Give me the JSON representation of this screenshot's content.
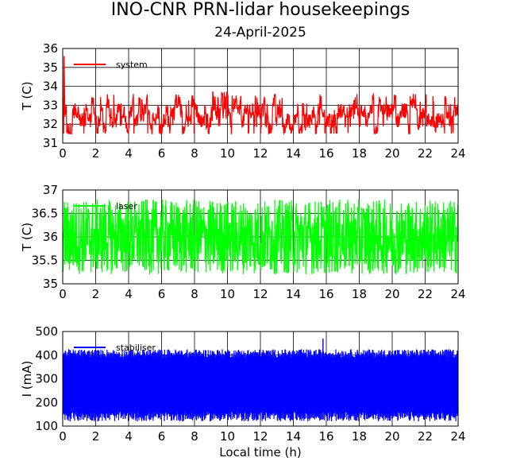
{
  "title": "INO-CNR PRN-lidar housekeepings",
  "subtitle": "24-April-2025",
  "colors": {
    "system": "#ff0000",
    "laser": "#00ff00",
    "stabiliser": "#0000ff"
  },
  "chart_data": [
    {
      "type": "line",
      "ylabel": "T (C)",
      "xlabel": "",
      "xlim": [
        0,
        24
      ],
      "ylim": [
        31,
        36
      ],
      "xticks": [
        "0",
        "2",
        "4",
        "6",
        "8",
        "10",
        "12",
        "14",
        "16",
        "18",
        "20",
        "22",
        "24"
      ],
      "yticks": [
        "31",
        "32",
        "33",
        "34",
        "35",
        "36"
      ],
      "grid": true,
      "legend_position": "top-left",
      "series": [
        {
          "name": "system",
          "color": "#ff0000",
          "description": "dense noisy trace mostly between 31.5 and 33.2 C, spikes to 35.6 C near 0 h",
          "typical_range": [
            31.5,
            33.2
          ],
          "max": 35.6
        }
      ]
    },
    {
      "type": "line",
      "ylabel": "T (C)",
      "xlabel": "",
      "xlim": [
        0,
        24
      ],
      "ylim": [
        35,
        37
      ],
      "xticks": [
        "0",
        "2",
        "4",
        "6",
        "8",
        "10",
        "12",
        "14",
        "16",
        "18",
        "20",
        "22",
        "24"
      ],
      "yticks": [
        "35",
        "35.5",
        "36",
        "36.5",
        "37"
      ],
      "grid": true,
      "legend_position": "top-left",
      "series": [
        {
          "name": "laser",
          "color": "#00ff00",
          "description": "dense oscillation between about 35.2 and 36.8 C",
          "typical_range": [
            35.2,
            36.8
          ]
        }
      ]
    },
    {
      "type": "line",
      "ylabel": "I (mA)",
      "xlabel": "Local time (h)",
      "xlim": [
        0,
        24
      ],
      "ylim": [
        100,
        500
      ],
      "xticks": [
        "0",
        "2",
        "4",
        "6",
        "8",
        "10",
        "12",
        "14",
        "16",
        "18",
        "20",
        "22",
        "24"
      ],
      "yticks": [
        "100",
        "200",
        "300",
        "400",
        "500"
      ],
      "grid": true,
      "legend_position": "top-left",
      "series": [
        {
          "name": "stabiliser",
          "color": "#0000ff",
          "description": "dense band between about 120 and 420 mA, spike to ~470 mA near 15.8 h",
          "typical_range": [
            120,
            420
          ],
          "max": 470
        }
      ]
    }
  ]
}
